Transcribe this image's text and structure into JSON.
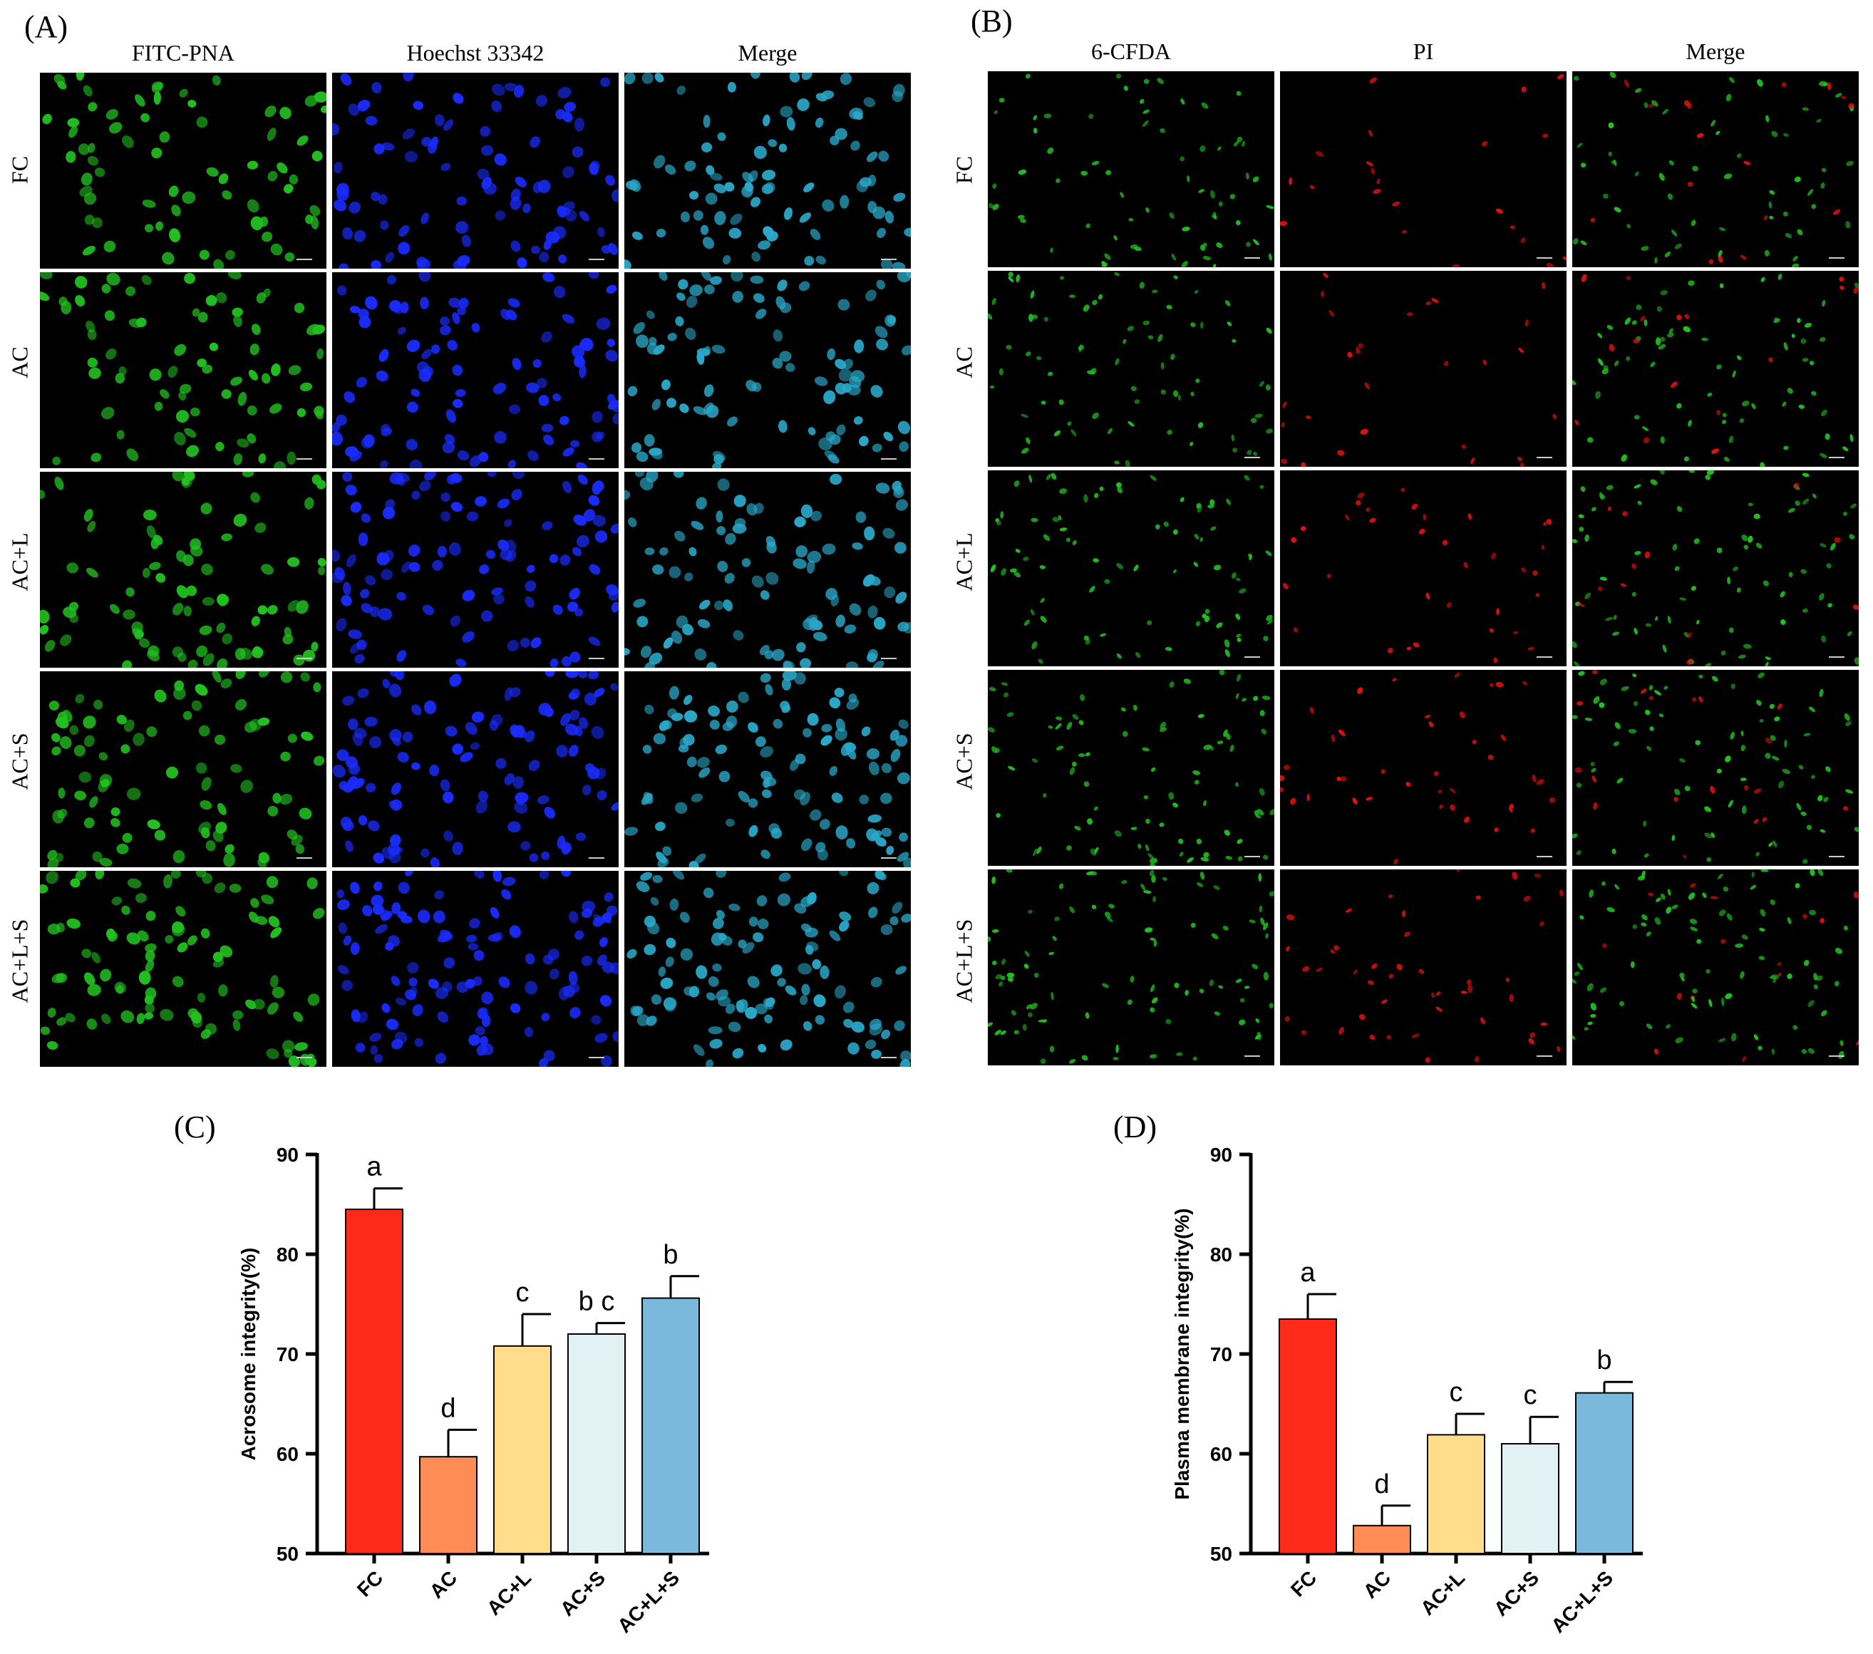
{
  "panels": {
    "A": {
      "letter": "(A)",
      "columns": [
        "FITC-PNA",
        "Hoechst 33342",
        "Merge"
      ],
      "rows": [
        "FC",
        "AC",
        "AC+L",
        "AC+S",
        "AC+L+S"
      ],
      "channel_colors": [
        "#22c020",
        "#1a2cff",
        "#2aa8c8"
      ]
    },
    "B": {
      "letter": "(B)",
      "columns": [
        "6-CFDA",
        "PI",
        "Merge"
      ],
      "rows": [
        "FC",
        "AC",
        "AC+L",
        "AC+S",
        "AC+L+S"
      ],
      "channel_colors": [
        "#22c020",
        "#e01010",
        "#22c020"
      ]
    },
    "C": {
      "letter": "(C)"
    },
    "D": {
      "letter": "(D)"
    }
  },
  "chart_data": [
    {
      "type": "bar",
      "categories": [
        "FC",
        "AC",
        "AC+L",
        "AC+S",
        "AC+L+S"
      ],
      "values": [
        84.5,
        59.7,
        70.8,
        72.0,
        75.6
      ],
      "errors": [
        2.1,
        2.7,
        3.2,
        1.1,
        2.2
      ],
      "significance": [
        "a",
        "d",
        "c",
        "b c",
        "b"
      ],
      "colors": [
        "#ff2a1a",
        "#ff8c55",
        "#ffdd8a",
        "#e2f1f4",
        "#7ab8dc"
      ],
      "title": "",
      "xlabel": "",
      "ylabel": "Acrosome integrity(%)",
      "ylim": [
        50,
        90
      ],
      "yticks": [
        50,
        60,
        70,
        80,
        90
      ],
      "grid": false
    },
    {
      "type": "bar",
      "categories": [
        "FC",
        "AC",
        "AC+L",
        "AC+S",
        "AC+L+S"
      ],
      "values": [
        73.5,
        52.8,
        61.9,
        61.0,
        66.1
      ],
      "errors": [
        2.5,
        2.0,
        2.1,
        2.7,
        1.1
      ],
      "significance": [
        "a",
        "d",
        "c",
        "c",
        "b"
      ],
      "colors": [
        "#ff2a1a",
        "#ff8c55",
        "#ffdd8a",
        "#e2f1f4",
        "#7ab8dc"
      ],
      "title": "",
      "xlabel": "",
      "ylabel": "Plasma membrane integrity(%)",
      "ylim": [
        50,
        90
      ],
      "yticks": [
        50,
        60,
        70,
        80,
        90
      ],
      "grid": false
    }
  ]
}
